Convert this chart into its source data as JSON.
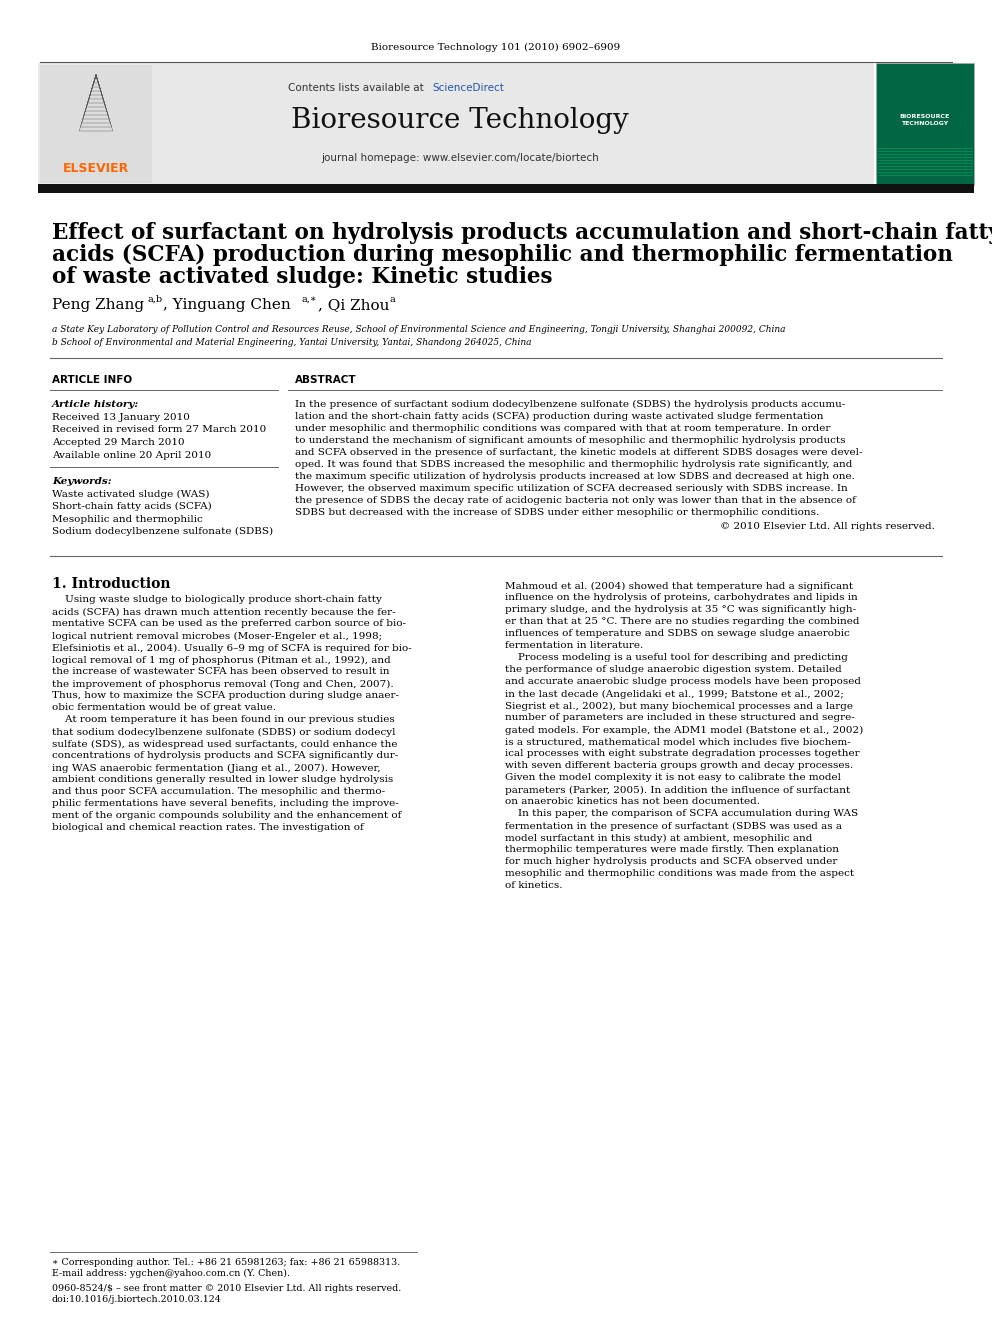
{
  "page_bg": "#ffffff",
  "journal_citation": "Bioresource Technology 101 (2010) 6902–6909",
  "contents_text": "Contents lists available at",
  "sciencedirect_text": "ScienceDirect",
  "journal_name": "Bioresource Technology",
  "homepage_text": "journal homepage: www.elsevier.com/locate/biortech",
  "elsevier_color": "#ff6600",
  "sciencedirect_color": "#2255aa",
  "header_bg": "#e8e8e8",
  "title_line1": "Effect of surfactant on hydrolysis products accumulation and short-chain fatty",
  "title_line2": "acids (SCFA) production during mesophilic and thermophilic fermentation",
  "title_line3": "of waste activated sludge: Kinetic studies",
  "affil1": "a State Key Laboratory of Pollution Control and Resources Reuse, School of Environmental Science and Engineering, Tongji University, Shanghai 200092, China",
  "affil2": "b School of Environmental and Material Engineering, Yantai University, Yantai, Shandong 264025, China",
  "article_info_header": "ARTICLE INFO",
  "abstract_header": "ABSTRACT",
  "article_history_label": "Article history:",
  "history_lines": [
    "Received 13 January 2010",
    "Received in revised form 27 March 2010",
    "Accepted 29 March 2010",
    "Available online 20 April 2010"
  ],
  "keywords_label": "Keywords:",
  "keywords": [
    "Waste activated sludge (WAS)",
    "Short-chain fatty acids (SCFA)",
    "Mesophilic and thermophilic",
    "Sodium dodecylbenzene sulfonate (SDBS)"
  ],
  "abstract_lines": [
    "In the presence of surfactant sodium dodecylbenzene sulfonate (SDBS) the hydrolysis products accumu-",
    "lation and the short-chain fatty acids (SCFA) production during waste activated sludge fermentation",
    "under mesophilic and thermophilic conditions was compared with that at room temperature. In order",
    "to understand the mechanism of significant amounts of mesophilic and thermophilic hydrolysis products",
    "and SCFA observed in the presence of surfactant, the kinetic models at different SDBS dosages were devel-",
    "oped. It was found that SDBS increased the mesophilic and thermophilic hydrolysis rate significantly, and",
    "the maximum specific utilization of hydrolysis products increased at low SDBS and decreased at high one.",
    "However, the observed maximum specific utilization of SCFA decreased seriously with SDBS increase. In",
    "the presence of SDBS the decay rate of acidogenic bacteria not only was lower than that in the absence of",
    "SDBS but decreased with the increase of SDBS under either mesophilic or thermophilic conditions."
  ],
  "copyright_line": "© 2010 Elsevier Ltd. All rights reserved.",
  "intro_header": "1. Introduction",
  "intro_left_lines": [
    "    Using waste sludge to biologically produce short-chain fatty",
    "acids (SCFA) has drawn much attention recently because the fer-",
    "mentative SCFA can be used as the preferred carbon source of bio-",
    "logical nutrient removal microbes (Moser-Engeler et al., 1998;",
    "Elefsiniotis et al., 2004). Usually 6–9 mg of SCFA is required for bio-",
    "logical removal of 1 mg of phosphorus (Pitman et al., 1992), and",
    "the increase of wastewater SCFA has been observed to result in",
    "the improvement of phosphorus removal (Tong and Chen, 2007).",
    "Thus, how to maximize the SCFA production during sludge anaer-",
    "obic fermentation would be of great value.",
    "    At room temperature it has been found in our previous studies",
    "that sodium dodecylbenzene sulfonate (SDBS) or sodium dodecyl",
    "sulfate (SDS), as widespread used surfactants, could enhance the",
    "concentrations of hydrolysis products and SCFA significantly dur-",
    "ing WAS anaerobic fermentation (Jiang et al., 2007). However,",
    "ambient conditions generally resulted in lower sludge hydrolysis",
    "and thus poor SCFA accumulation. The mesophilic and thermo-",
    "philic fermentations have several benefits, including the improve-",
    "ment of the organic compounds solubility and the enhancement of",
    "biological and chemical reaction rates. The investigation of"
  ],
  "intro_right_lines": [
    "Mahmoud et al. (2004) showed that temperature had a significant",
    "influence on the hydrolysis of proteins, carbohydrates and lipids in",
    "primary sludge, and the hydrolysis at 35 °C was significantly high-",
    "er than that at 25 °C. There are no studies regarding the combined",
    "influences of temperature and SDBS on sewage sludge anaerobic",
    "fermentation in literature.",
    "    Process modeling is a useful tool for describing and predicting",
    "the performance of sludge anaerobic digestion system. Detailed",
    "and accurate anaerobic sludge process models have been proposed",
    "in the last decade (Angelidaki et al., 1999; Batstone et al., 2002;",
    "Siegrist et al., 2002), but many biochemical processes and a large",
    "number of parameters are included in these structured and segre-",
    "gated models. For example, the ADM1 model (Batstone et al., 2002)",
    "is a structured, mathematical model which includes five biochem-",
    "ical processes with eight substrate degradation processes together",
    "with seven different bacteria groups growth and decay processes.",
    "Given the model complexity it is not easy to calibrate the model",
    "parameters (Parker, 2005). In addition the influence of surfactant",
    "on anaerobic kinetics has not been documented.",
    "    In this paper, the comparison of SCFA accumulation during WAS",
    "fermentation in the presence of surfactant (SDBS was used as a",
    "model surfactant in this study) at ambient, mesophilic and",
    "thermophilic temperatures were made firstly. Then explanation",
    "for much higher hydrolysis products and SCFA observed under",
    "mesophilic and thermophilic conditions was made from the aspect",
    "of kinetics."
  ],
  "footnote_star": "∗ Corresponding author. Tel.: +86 21 65981263; fax: +86 21 65988313.",
  "footnote_email": "E-mail address: ygchen@yahoo.com.cn (Y. Chen).",
  "footnote_issn": "0960-8524/$ – see front matter © 2010 Elsevier Ltd. All rights reserved.",
  "footnote_doi": "doi:10.1016/j.biortech.2010.03.124",
  "link_color": "#2255aa"
}
